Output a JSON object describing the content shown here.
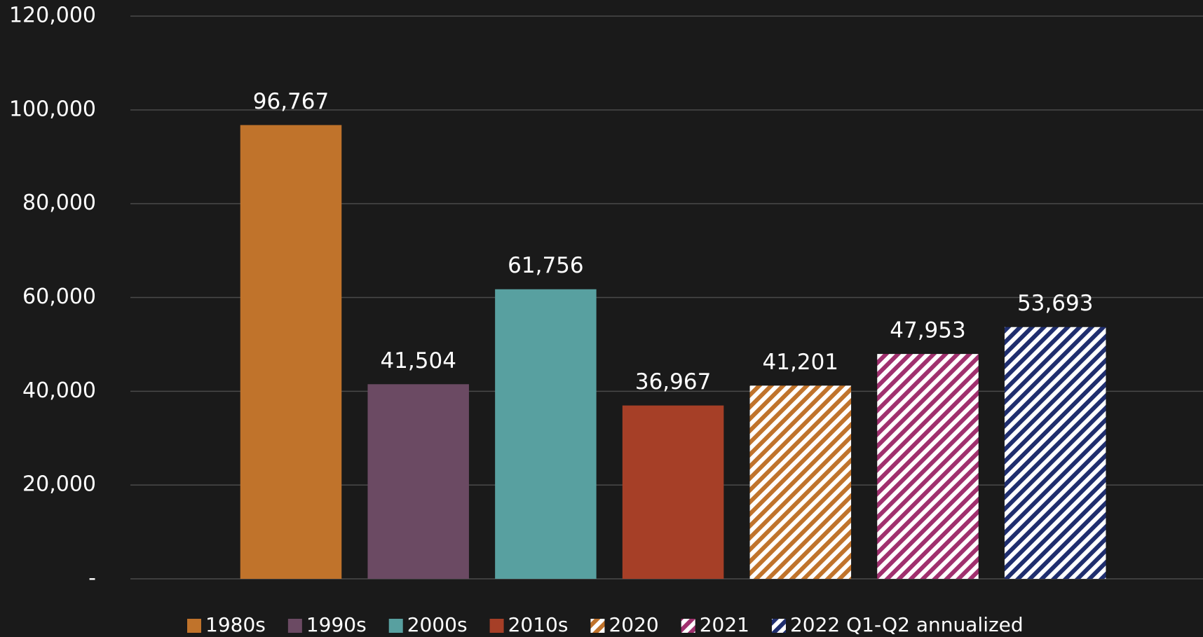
{
  "chart_data": {
    "type": "bar",
    "categories": [
      "1980s",
      "1990s",
      "2000s",
      "2010s",
      "2020",
      "2021",
      "2022 Q1-Q2 annualized"
    ],
    "values": [
      96767,
      41504,
      61756,
      36967,
      41201,
      47953,
      53693
    ],
    "value_labels": [
      "96,767",
      "41,504",
      "61,756",
      "36,967",
      "41,201",
      "47,953",
      "53,693"
    ],
    "colors": [
      "#c0732b",
      "#6b4a63",
      "#58a0a0",
      "#a63f27",
      "#c0732b",
      "#a0306e",
      "#1f2e6e"
    ],
    "hatched": [
      false,
      false,
      false,
      false,
      true,
      true,
      true
    ],
    "ylim": [
      0,
      120000
    ],
    "yticks": [
      {
        "value": 0,
        "label": "-"
      },
      {
        "value": 20000,
        "label": "20,000"
      },
      {
        "value": 40000,
        "label": "40,000"
      },
      {
        "value": 60000,
        "label": "60,000"
      },
      {
        "value": 80000,
        "label": "80,000"
      },
      {
        "value": 100000,
        "label": "100,000"
      },
      {
        "value": 120000,
        "label": "120,000"
      }
    ],
    "grid": true
  }
}
